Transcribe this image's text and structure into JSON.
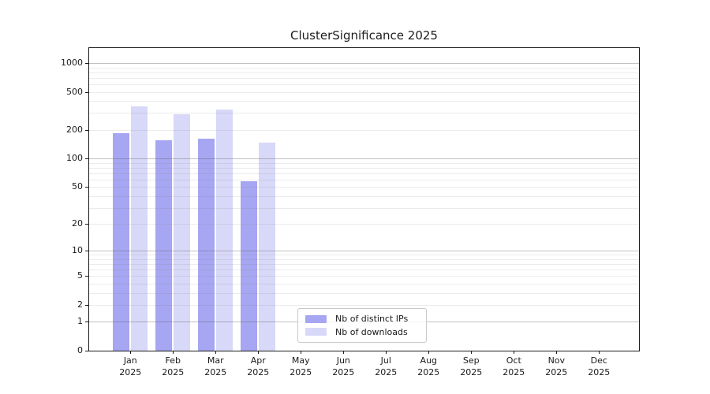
{
  "chart_data": {
    "type": "bar",
    "title": "ClusterSignificance 2025",
    "scale": "log1p",
    "categories": [
      "Jan",
      "Feb",
      "Mar",
      "Apr",
      "May",
      "Jun",
      "Jul",
      "Aug",
      "Sep",
      "Oct",
      "Nov",
      "Dec"
    ],
    "year": "2025",
    "xlabel": "",
    "ylabel": "",
    "y_ticks": [
      0,
      1,
      2,
      5,
      10,
      20,
      50,
      100,
      200,
      500,
      1000
    ],
    "ylim": [
      0,
      1430
    ],
    "grid": true,
    "legend_position": "lower center",
    "series": [
      {
        "name": "Nb of distinct IPs",
        "color": "#a6a6f2",
        "values": [
          185,
          157,
          162,
          58,
          null,
          null,
          null,
          null,
          null,
          null,
          null,
          null
        ]
      },
      {
        "name": "Nb of downloads",
        "color": "#d8d8f8",
        "values": [
          351,
          291,
          328,
          146,
          null,
          null,
          null,
          null,
          null,
          null,
          null,
          null
        ]
      }
    ]
  }
}
